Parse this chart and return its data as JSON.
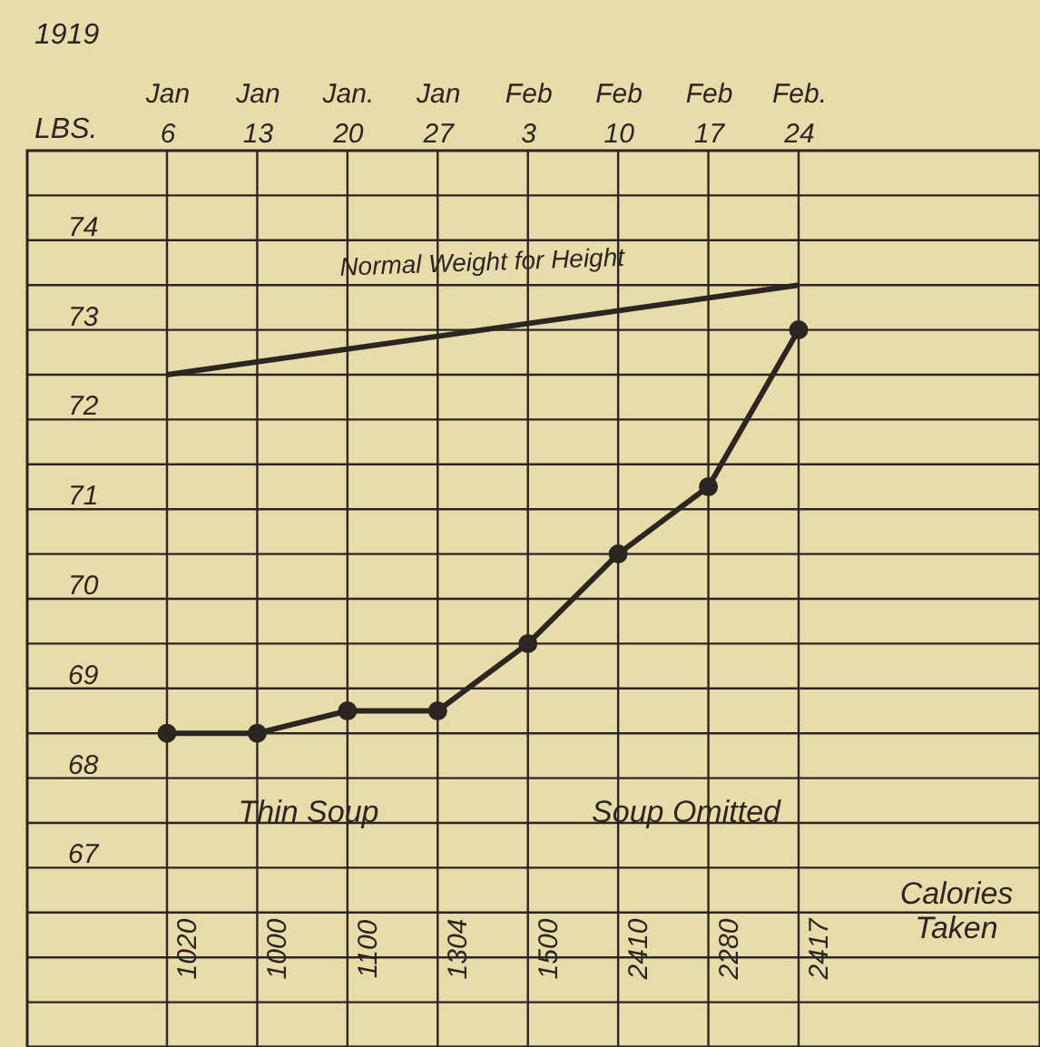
{
  "chart_data": {
    "type": "line",
    "xlabel": "1919",
    "ylabel": "LBS.",
    "categories": [
      "Jan 6",
      "Jan 13",
      "Jan. 20",
      "Jan 27",
      "Feb 3",
      "Feb 10",
      "Feb 17",
      "Feb. 24"
    ],
    "series": [
      {
        "color": "#2b2622",
        "values": [
          68.5,
          68.5,
          68.75,
          68.75,
          69.5,
          70.5,
          71.25,
          73.0
        ],
        "marker": "circle"
      },
      {
        "name": "Normal Weight for Height",
        "color": "#2b2622",
        "values": [
          72.5,
          null,
          null,
          null,
          null,
          null,
          null,
          73.5
        ],
        "marker": "none"
      }
    ],
    "ylim": [
      65,
      75
    ],
    "yticks": [
      {
        "value": 65,
        "label": null
      },
      {
        "value": 65.5,
        "label": null
      },
      {
        "value": 66,
        "label": null
      },
      {
        "value": 66.5,
        "label": null
      },
      67,
      {
        "value": 67.5,
        "label": null
      },
      68,
      {
        "value": 68.5,
        "label": null
      },
      69,
      {
        "value": 69.5,
        "label": null
      },
      70,
      {
        "value": 70.5,
        "label": null
      },
      71,
      {
        "value": 71.5,
        "label": null
      },
      72,
      {
        "value": 72.5,
        "label": null
      },
      73,
      {
        "value": 73.5,
        "label": null
      },
      74,
      {
        "value": 74.5,
        "label": null
      }
    ],
    "grid": true,
    "annotations": [
      "1020",
      "1000",
      "1100",
      "1304",
      "1500",
      "2410",
      "2280",
      "2417",
      "Thin Soup",
      "Soup Omitted",
      "Calories Taken"
    ]
  }
}
